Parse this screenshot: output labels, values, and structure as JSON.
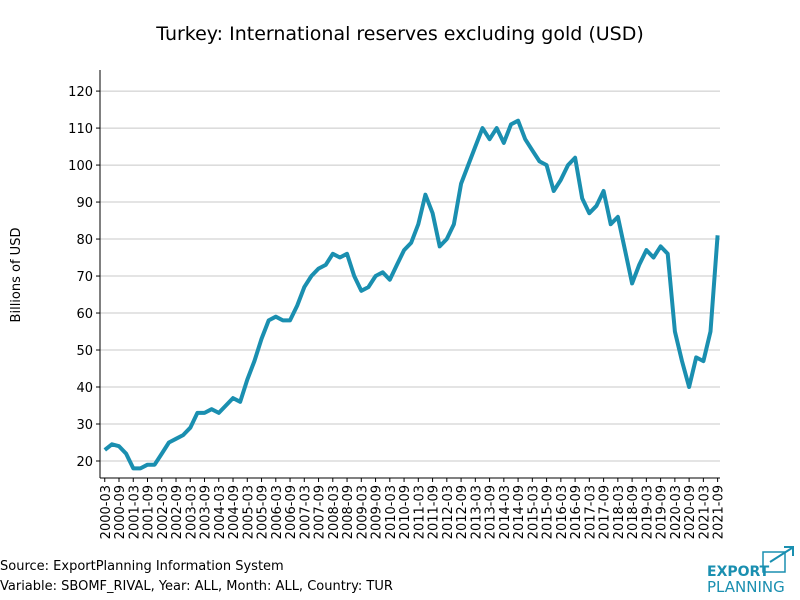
{
  "chart_data": {
    "type": "line",
    "title": "Turkey: International reserves excluding gold (USD)",
    "ylabel": "Billions of USD",
    "x": [
      "2000-03",
      "2000-06",
      "2000-09",
      "2000-12",
      "2001-03",
      "2001-06",
      "2001-09",
      "2001-12",
      "2002-03",
      "2002-06",
      "2002-09",
      "2002-12",
      "2003-03",
      "2003-06",
      "2003-09",
      "2003-12",
      "2004-03",
      "2004-06",
      "2004-09",
      "2004-12",
      "2005-03",
      "2005-06",
      "2005-09",
      "2005-12",
      "2006-03",
      "2006-06",
      "2006-09",
      "2006-12",
      "2007-03",
      "2007-06",
      "2007-09",
      "2007-12",
      "2008-03",
      "2008-06",
      "2008-09",
      "2008-12",
      "2009-03",
      "2009-06",
      "2009-09",
      "2009-12",
      "2010-03",
      "2010-06",
      "2010-09",
      "2010-12",
      "2011-03",
      "2011-06",
      "2011-09",
      "2011-12",
      "2012-03",
      "2012-06",
      "2012-09",
      "2012-12",
      "2013-03",
      "2013-06",
      "2013-09",
      "2013-12",
      "2014-03",
      "2014-06",
      "2014-09",
      "2014-12",
      "2015-03",
      "2015-06",
      "2015-09",
      "2015-12",
      "2016-03",
      "2016-06",
      "2016-09",
      "2016-12",
      "2017-03",
      "2017-06",
      "2017-09",
      "2017-12",
      "2018-03",
      "2018-06",
      "2018-09",
      "2018-12",
      "2019-03",
      "2019-06",
      "2019-09",
      "2019-12",
      "2020-03",
      "2020-06",
      "2020-09",
      "2020-12",
      "2021-03",
      "2021-06",
      "2021-09"
    ],
    "series": [
      {
        "name": "International reserves excluding gold",
        "color": "#1a8fb0",
        "values": [
          23,
          24.5,
          24,
          22,
          18,
          18,
          19,
          19,
          22,
          25,
          26,
          27,
          29,
          33,
          33,
          34,
          33,
          35,
          37,
          36,
          42,
          47,
          53,
          58,
          59,
          58,
          58,
          62,
          67,
          70,
          72,
          73,
          76,
          75,
          76,
          70,
          66,
          67,
          70,
          71,
          69,
          73,
          77,
          79,
          84,
          92,
          87,
          78,
          80,
          84,
          95,
          100,
          105,
          110,
          107,
          110,
          106,
          111,
          112,
          107,
          104,
          101,
          100,
          93,
          96,
          100,
          102,
          91,
          87,
          89,
          93,
          84,
          86,
          77,
          68,
          73,
          77,
          75,
          78,
          76,
          55,
          47,
          40,
          48,
          47,
          55,
          81
        ]
      }
    ],
    "xlim": [
      "2000-01",
      "2021-10"
    ],
    "xticks": [
      "2000-03",
      "2000-09",
      "2001-03",
      "2001-09",
      "2002-03",
      "2002-09",
      "2003-03",
      "2003-09",
      "2004-03",
      "2004-09",
      "2005-03",
      "2005-09",
      "2006-03",
      "2006-09",
      "2007-03",
      "2007-09",
      "2008-03",
      "2008-09",
      "2009-03",
      "2009-09",
      "2010-03",
      "2010-09",
      "2011-03",
      "2011-09",
      "2012-03",
      "2012-09",
      "2013-03",
      "2013-09",
      "2014-03",
      "2014-09",
      "2015-03",
      "2015-09",
      "2016-03",
      "2016-09",
      "2017-03",
      "2017-09",
      "2018-03",
      "2018-09",
      "2019-03",
      "2019-09",
      "2020-03",
      "2020-09",
      "2021-03",
      "2021-09"
    ],
    "ylim": [
      15.4,
      125.7
    ],
    "yticks": [
      20,
      30,
      40,
      50,
      60,
      70,
      80,
      90,
      100,
      110,
      120
    ],
    "grid": true
  },
  "footer": {
    "source": "Source: ExportPlanning Information System",
    "variable": "Variable: SBOMF_RIVAL, Year: ALL, Month: ALL, Country: TUR",
    "logo_top": "EXPORT",
    "logo_bottom": "PLANNING"
  }
}
